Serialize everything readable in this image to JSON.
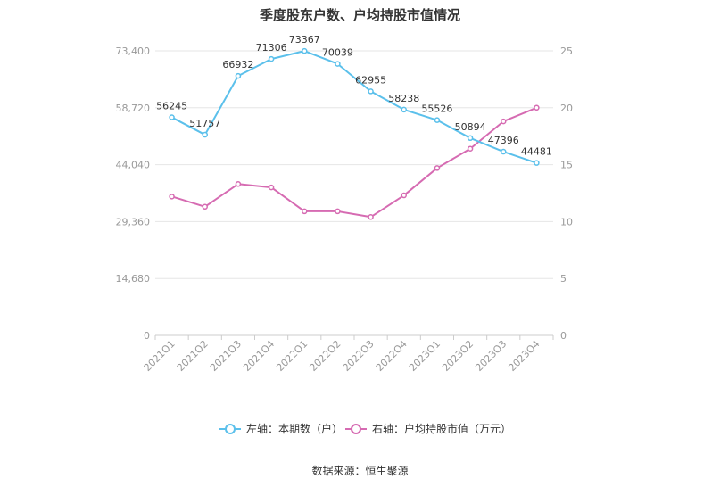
{
  "title": "季度股东户数、户均持股市值情况",
  "source": "数据来源：恒生聚源",
  "colors": {
    "left": "#5bc0eb",
    "right": "#d66bb2",
    "grid": "#e6e6e6",
    "axis_text": "#999999",
    "label_text": "#333333"
  },
  "chart_data": {
    "type": "line",
    "title": "季度股东户数、户均持股市值情况",
    "categories": [
      "2021Q1",
      "2021Q2",
      "2021Q3",
      "2021Q4",
      "2022Q1",
      "2022Q2",
      "2022Q3",
      "2022Q4",
      "2023Q1",
      "2023Q2",
      "2023Q3",
      "2023Q4"
    ],
    "left_axis": {
      "min": 0,
      "max": 73400,
      "ticks": [
        0,
        14680,
        29360,
        44040,
        58720,
        73400
      ],
      "tick_labels": [
        "0",
        "14,680",
        "29,360",
        "44,040",
        "58,720",
        "73,400"
      ]
    },
    "right_axis": {
      "min": 0,
      "max": 25,
      "ticks": [
        0,
        5,
        10,
        15,
        20,
        25
      ],
      "tick_labels": [
        "0",
        "5",
        "10",
        "15",
        "20",
        "25"
      ]
    },
    "series": [
      {
        "name": "左轴：本期数（户）",
        "axis": "left",
        "color": "#5bc0eb",
        "values": [
          56245,
          51757,
          66932,
          71306,
          73367,
          70039,
          62955,
          58238,
          55526,
          50894,
          47396,
          44481
        ],
        "labels": [
          "56245",
          "51757",
          "66932",
          "71306",
          "73367",
          "70039",
          "62955",
          "58238",
          "55526",
          "50894",
          "47396",
          "44481"
        ]
      },
      {
        "name": "右轴：户均持股市值（万元）",
        "axis": "right",
        "color": "#d66bb2",
        "values": [
          12.2,
          11.3,
          13.3,
          13.0,
          10.9,
          10.9,
          10.4,
          12.3,
          14.7,
          16.4,
          18.8,
          20.0
        ]
      }
    ],
    "grid": true,
    "legend_position": "bottom"
  }
}
